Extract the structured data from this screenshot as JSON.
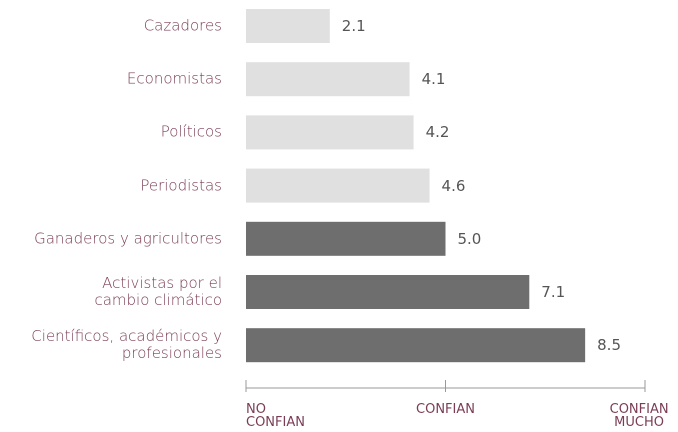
{
  "chart_data": {
    "type": "bar",
    "orientation": "horizontal",
    "categories": [
      "Cazadores",
      "Economistas",
      "Políticos",
      "Periodistas",
      "Ganaderos y agricultores",
      "Activistas por el\ncambio climático",
      "Científicos, académicos y\nprofesionales"
    ],
    "values": [
      2.1,
      4.1,
      4.2,
      4.6,
      5.0,
      7.1,
      8.5
    ],
    "value_labels": [
      "2.1",
      "4.1",
      "4.2",
      "4.6",
      "5.0",
      "7.1",
      "8.5"
    ],
    "colors": [
      "#e0e0e0",
      "#e0e0e0",
      "#e0e0e0",
      "#e0e0e0",
      "#6e6e6e",
      "#6e6e6e",
      "#6e6e6e"
    ],
    "xlim": [
      0,
      10
    ],
    "xticks": [
      {
        "value": 0,
        "label": "NO\nCONFIAN"
      },
      {
        "value": 5,
        "label": "CONFIAN"
      },
      {
        "value": 10,
        "label": "CONFIAN\nMUCHO"
      }
    ]
  }
}
